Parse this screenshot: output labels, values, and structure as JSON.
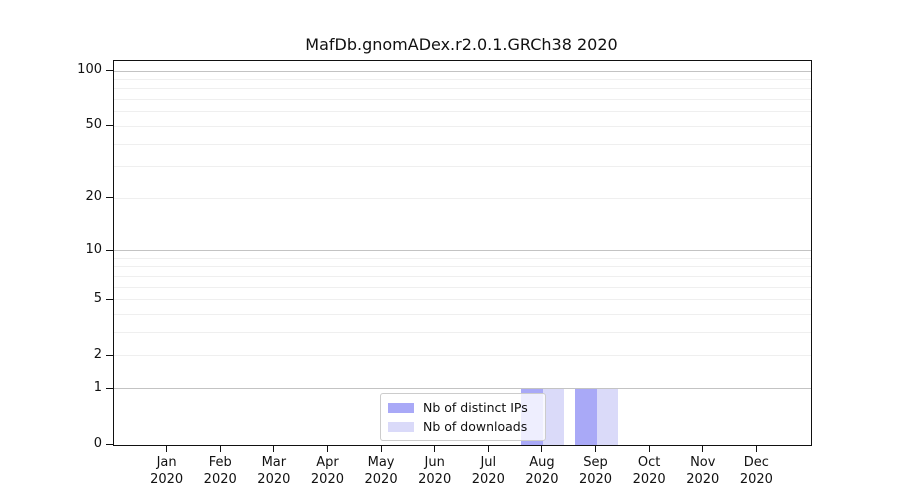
{
  "chart_data": {
    "type": "bar",
    "title": "MafDb.gnomADex.r2.0.1.GRCh38 2020",
    "categories": [
      "Jan 2020",
      "Feb 2020",
      "Mar 2020",
      "Apr 2020",
      "May 2020",
      "Jun 2020",
      "Jul 2020",
      "Aug 2020",
      "Sep 2020",
      "Oct 2020",
      "Nov 2020",
      "Dec 2020"
    ],
    "series": [
      {
        "name": "Nb of distinct IPs",
        "color": "#a9a9f7",
        "values": [
          0,
          0,
          0,
          0,
          0,
          0,
          0,
          1,
          1,
          0,
          0,
          0
        ]
      },
      {
        "name": "Nb of downloads",
        "color": "#dadaf9",
        "values": [
          0,
          0,
          0,
          0,
          0,
          0,
          0,
          1,
          1,
          0,
          0,
          0
        ]
      }
    ],
    "xlabel": "",
    "ylabel": "",
    "yscale": "log1p",
    "ylim": [
      0,
      113
    ],
    "yticks": [
      0,
      1,
      2,
      5,
      10,
      20,
      50,
      100
    ],
    "yticks_minor": [
      2,
      3,
      4,
      5,
      6,
      7,
      8,
      9,
      20,
      30,
      40,
      50,
      60,
      70,
      80,
      90
    ],
    "grid": "horizontal-only",
    "legend_position": "lower-center",
    "legend": [
      "Nb of distinct IPs",
      "Nb of downloads"
    ]
  }
}
